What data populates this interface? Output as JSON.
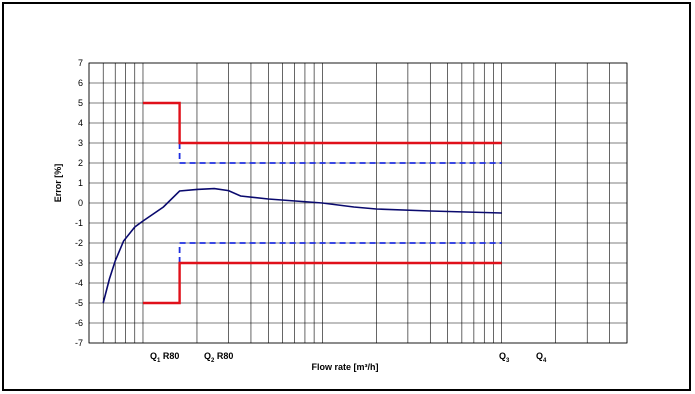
{
  "chart_data": {
    "type": "line",
    "title": "",
    "xlabel": "Flow rate [m³/h]",
    "ylabel": "Error [%]",
    "x_scale": "log",
    "ylim": [
      -7,
      7
    ],
    "y_ticks": [
      7,
      6,
      5,
      4,
      3,
      2,
      1,
      0,
      -1,
      -2,
      -3,
      -4,
      -5,
      -6,
      -7
    ],
    "grid": true,
    "legend": "none",
    "x_tick_labels": [
      {
        "main": "Q",
        "sub": "1",
        "suffix": " R80"
      },
      {
        "main": "Q",
        "sub": "2",
        "suffix": " R80"
      },
      {
        "main": "Q",
        "sub": "3",
        "suffix": ""
      },
      {
        "main": "Q",
        "sub": "4",
        "suffix": ""
      }
    ],
    "colors": {
      "measured": "#0a0a6e",
      "mpe_limit": "#e0101a",
      "inner_limit": "#1e2ee0",
      "grid": "#000000"
    },
    "series": [
      {
        "values": [
          [
            0.06,
            -5.0
          ],
          [
            0.065,
            -3.8
          ],
          [
            0.07,
            -2.9
          ],
          [
            0.078,
            -1.9
          ],
          [
            0.09,
            -1.2
          ],
          [
            0.1,
            -0.9
          ],
          [
            0.13,
            -0.2
          ],
          [
            0.16,
            0.6
          ],
          [
            0.2,
            0.68
          ],
          [
            0.25,
            0.72
          ],
          [
            0.3,
            0.62
          ],
          [
            0.35,
            0.35
          ],
          [
            0.5,
            0.2
          ],
          [
            1.0,
            0.0
          ],
          [
            1.5,
            -0.2
          ],
          [
            2.0,
            -0.3
          ],
          [
            4.0,
            -0.4
          ],
          [
            10.0,
            -0.5
          ]
        ]
      },
      {
        "values": [
          [
            0.1,
            5
          ],
          [
            0.16,
            5
          ],
          [
            0.16,
            3
          ],
          [
            10,
            3
          ]
        ]
      },
      {
        "values": [
          [
            0.1,
            -5
          ],
          [
            0.16,
            -5
          ],
          [
            0.16,
            -3
          ],
          [
            10,
            -3
          ]
        ]
      },
      {
        "values": [
          [
            0.16,
            3
          ],
          [
            0.16,
            2
          ],
          [
            10,
            2
          ]
        ]
      },
      {
        "values": [
          [
            0.16,
            -3
          ],
          [
            0.16,
            -2
          ],
          [
            10,
            -2
          ]
        ]
      }
    ]
  }
}
